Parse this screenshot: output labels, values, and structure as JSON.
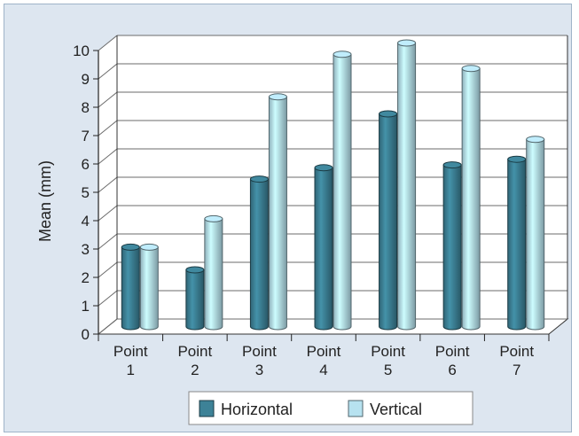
{
  "chart_data": {
    "type": "bar",
    "categories": [
      "Point 1",
      "Point 2",
      "Point 3",
      "Point 4",
      "Point 5",
      "Point 6",
      "Point 7"
    ],
    "series": [
      {
        "name": "Horizontal",
        "color": "#3d8297",
        "values": [
          2.8,
          2.0,
          5.2,
          5.6,
          7.5,
          5.7,
          5.9
        ]
      },
      {
        "name": "Vertical",
        "color": "#b7e2f0",
        "values": [
          2.8,
          3.8,
          8.1,
          9.6,
          10.0,
          9.1,
          6.6
        ]
      }
    ],
    "xlabel": "",
    "ylabel": "Mean (mm)",
    "ylim": [
      0,
      10
    ],
    "yticks": [
      0,
      1,
      2,
      3,
      4,
      5,
      6,
      7,
      8,
      9,
      10
    ],
    "grid": true,
    "legend_position": "bottom"
  }
}
